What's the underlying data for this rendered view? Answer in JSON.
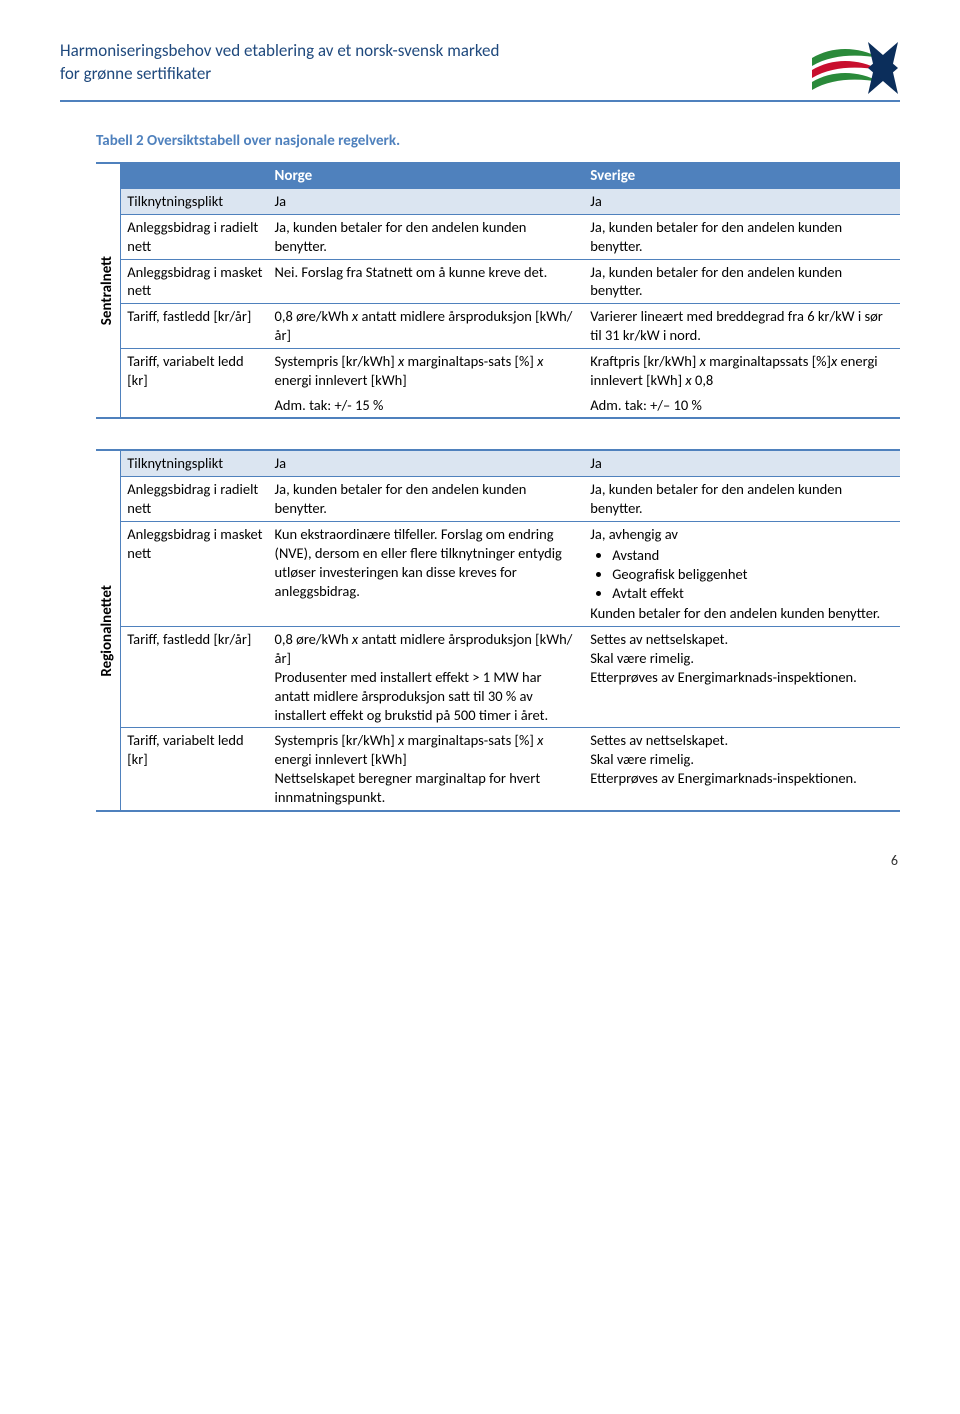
{
  "header": {
    "line1": "Harmoniseringsbehov ved etablering av et norsk-svensk marked",
    "line2": "for grønne sertifikater",
    "header_color": "#1f497d",
    "rule_color": "#4f81bd"
  },
  "logo": {
    "colors": {
      "green": "#2a8a3a",
      "red": "#c8102e",
      "navy": "#0b2e5b"
    }
  },
  "caption": "Tabell 2 Oversiktstabell over nasjonale regelverk.",
  "table_colors": {
    "header_bg": "#4f81bd",
    "header_fg": "#ffffff",
    "band_bg": "#dbe5f1",
    "border": "#4f81bd"
  },
  "columns": {
    "blank": "",
    "norge": "Norge",
    "sverige": "Sverige"
  },
  "sections": [
    {
      "side_label": "Sentralnett",
      "rows": [
        {
          "label_bind": "r.tilknytningsplikt",
          "label": "Tilknytningsplikt",
          "norge": "Ja",
          "norge_bind": "r.ja1",
          "sverige": "Ja",
          "sverige_bind": "r.ja2",
          "band": true
        },
        {
          "label": "Anleggsbidrag i radielt nett",
          "norge": "Ja, kunden betaler for den andelen kunden benytter.",
          "sverige": "Ja, kunden betaler for den andelen kunden benytter.",
          "div_top": true
        },
        {
          "label": "Anleggsbidrag i masket nett",
          "norge": "Nei. Forslag fra Statnett om å kunne kreve det.",
          "sverige": "Ja, kunden betaler for den andelen kunden benytter.",
          "div_top": true
        },
        {
          "label": "Tariff, fastledd [kr/år]",
          "norge_html": "0,8 øre/kWh <span class='i'>x</span> antatt midlere årsproduksjon [kWh/år]",
          "sverige": "Varierer lineært med breddegrad fra 6 kr/kW i sør til 31 kr/kW i nord.",
          "div_top": true
        },
        {
          "label": "Tariff, variabelt ledd [kr]",
          "norge_html": "Systempris [kr/kWh] <span class='i'>x</span> marginaltaps-sats [%] <span class='i'>x</span> energi innlevert [kWh]",
          "sverige_html": "Kraftpris [kr/kWh] <span class='i'>x</span> marginaltapssats [%]<span class='i'>x</span> energi innlevert [kWh] <span class='i'>x</span> 0,8",
          "div_top": true
        },
        {
          "label": "",
          "norge": "Adm. tak: +/- 15 %",
          "sverige": "Adm. tak: +/– 10 %"
        }
      ]
    },
    {
      "side_label": "Regionalnettet",
      "rows": [
        {
          "label": "Tilknytningsplikt",
          "norge": "Ja",
          "sverige": "Ja",
          "band": true
        },
        {
          "label": "Anleggsbidrag i radielt nett",
          "norge": "Ja, kunden betaler for den andelen kunden benytter.",
          "sverige": "Ja, kunden betaler for den andelen kunden benytter.",
          "div_top": true
        },
        {
          "label": "Anleggsbidrag i masket nett",
          "norge": "Kun ekstraordinære tilfeller. Forslag om endring (NVE), dersom en eller flere tilknytninger entydig utløser investeringen kan disse kreves for anleggsbidrag.",
          "sverige_html": "Ja, avhengig av<ul class='bullets'><li>Avstand</li><li>Geografisk beliggenhet</li><li>Avtalt effekt</li></ul>Kunden betaler for den andelen kunden benytter.",
          "sverige_bullets": [
            "Avstand",
            "Geografisk beliggenhet",
            "Avtalt effekt"
          ],
          "div_top": true
        },
        {
          "label": "Tariff, fastledd [kr/år]",
          "norge_html": "0,8 øre/kWh <span class='i'>x</span> antatt midlere årsproduksjon [kWh/år]<br>Produsenter med installert effekt &gt; 1 MW har antatt midlere årsproduksjon satt til 30 % av installert effekt og brukstid på 500 timer i året.",
          "sverige_html": "Settes av nettselskapet.<br>Skal være rimelig.<br>Etterprøves av Energimarknads-inspektionen.",
          "div_top": true
        },
        {
          "label": "Tariff, variabelt ledd [kr]",
          "norge_html": "Systempris [kr/kWh] <span class='i'>x</span> marginaltaps-sats [%] <span class='i'>x</span> energi innlevert [kWh]<br>Nettselskapet beregner marginaltap for hvert innmatningspunkt.",
          "sverige_html": "Settes av nettselskapet.<br>Skal være rimelig.<br>Etterprøves av Energimarknads-inspektionen.",
          "div_top": true
        }
      ]
    }
  ],
  "page_number": "6"
}
